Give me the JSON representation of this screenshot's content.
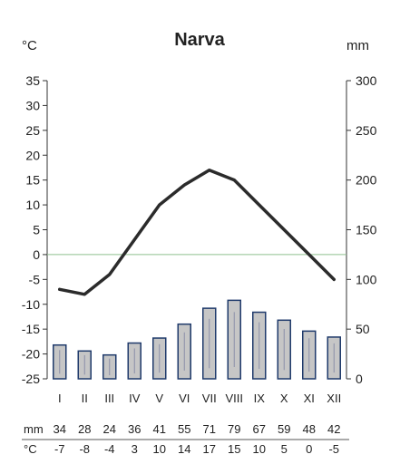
{
  "chart_data": {
    "type": "bar",
    "title": "Narva",
    "left_unit": "°C",
    "right_unit": "mm",
    "categories": [
      "I",
      "II",
      "III",
      "IV",
      "V",
      "VI",
      "VII",
      "VIII",
      "IX",
      "X",
      "XI",
      "XII"
    ],
    "series": [
      {
        "name": "mm",
        "type": "bar",
        "axis": "right",
        "values": [
          34,
          28,
          24,
          36,
          41,
          55,
          71,
          79,
          67,
          59,
          48,
          42
        ]
      },
      {
        "name": "°C",
        "type": "line",
        "axis": "left",
        "values": [
          -7,
          -8,
          -4,
          3,
          10,
          14,
          17,
          15,
          10,
          5,
          0,
          -5
        ]
      }
    ],
    "precip_labels": [
      "34",
      "28",
      "24",
      "36",
      "41",
      "55",
      "71",
      "79",
      "67",
      "59",
      "48",
      "42"
    ],
    "temp_labels": [
      "-7",
      "-8",
      "-4",
      "3",
      "10",
      "14",
      "17",
      "15",
      "10",
      "5",
      "0",
      "-5"
    ],
    "left_axis": {
      "ylim": [
        -25,
        35
      ],
      "ticks": [
        "35",
        "30",
        "25",
        "20",
        "15",
        "10",
        "5",
        "0",
        "-5",
        "-10",
        "-15",
        "-20",
        "-25"
      ]
    },
    "right_axis": {
      "ylim": [
        0,
        300
      ],
      "ticks": [
        "300",
        "250",
        "200",
        "150",
        "100",
        "50",
        "0"
      ]
    },
    "colors": {
      "bar_fill": "#c6c6c6",
      "bar_stroke": "#1f3a6b",
      "line": "#2b2b2b",
      "zero_line": "#8fc08f"
    }
  }
}
